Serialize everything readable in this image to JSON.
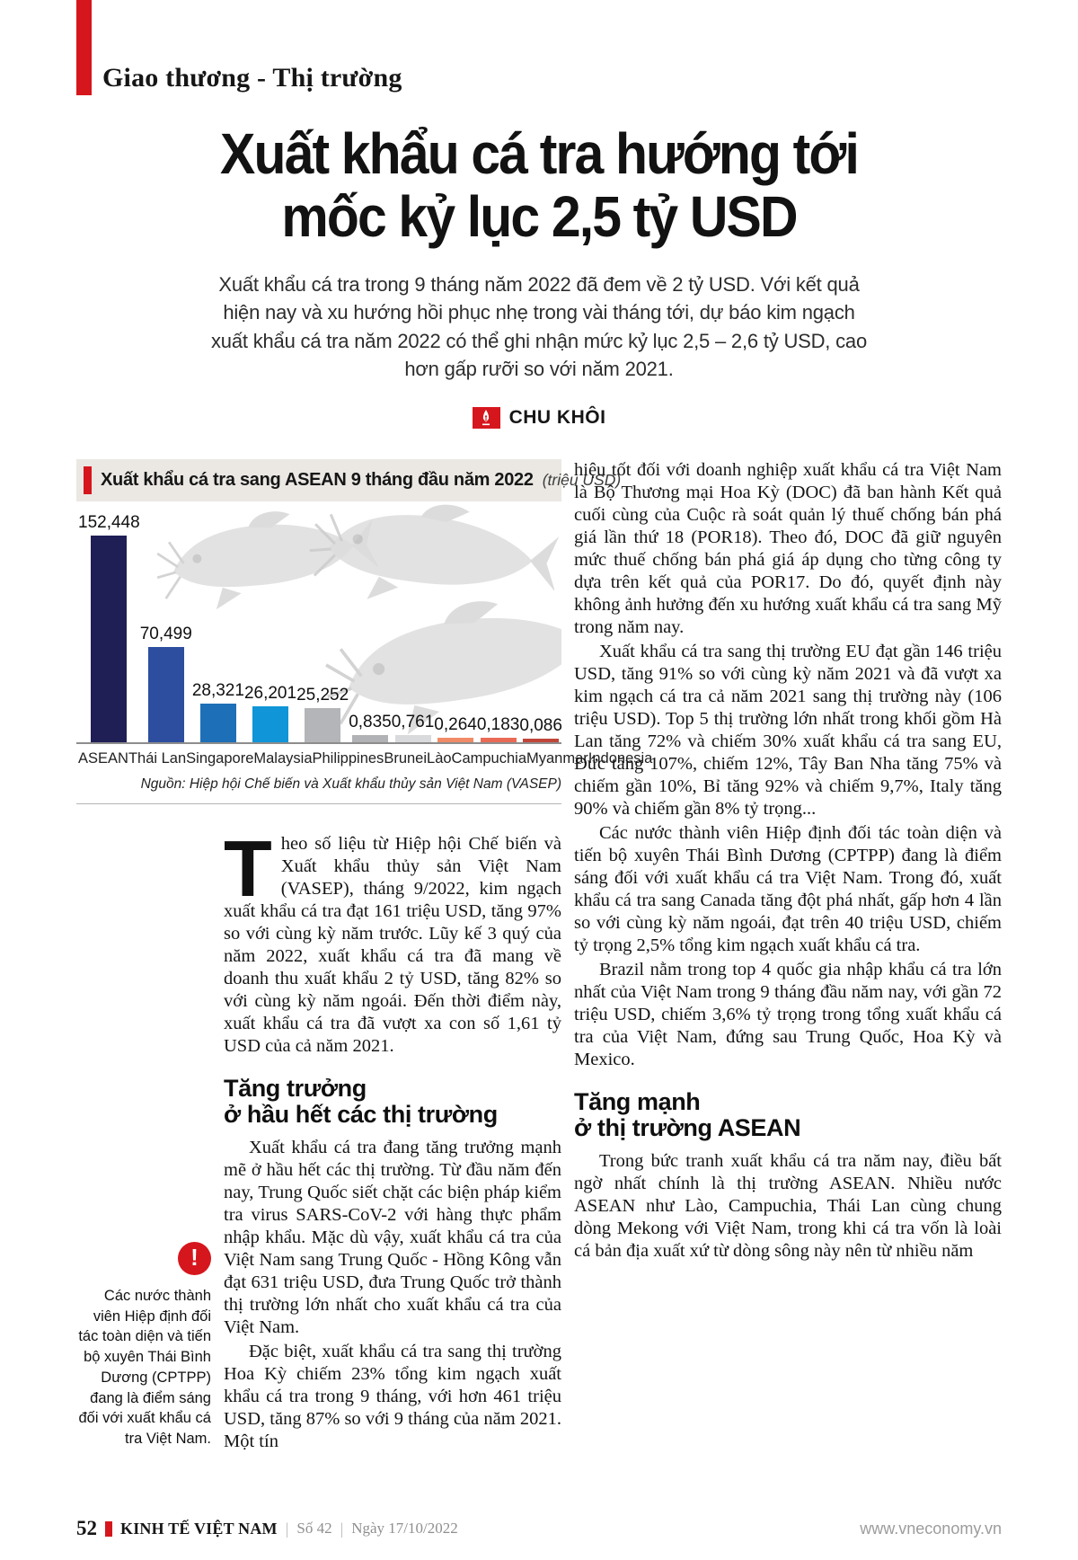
{
  "kicker": "Giao thương - Thị trường",
  "headline": {
    "line1": "Xuất khẩu cá tra hướng tới",
    "line2": "mốc kỷ lục 2,5 tỷ USD"
  },
  "deck": "Xuất khẩu cá tra trong 9 tháng năm 2022 đã đem về 2 tỷ USD. Với kết quả hiện nay và xu hướng hồi phục nhẹ trong vài tháng tới, dự báo kim ngạch xuất khẩu cá tra năm 2022 có thể ghi nhận mức kỷ lục 2,5 – 2,6 tỷ USD, cao hơn gấp rưỡi so với năm 2021.",
  "byline": {
    "author": "CHU KHÔI",
    "icon": "pen-nib-icon"
  },
  "chart_data": {
    "type": "bar",
    "title": "Xuất khẩu cá tra sang ASEAN 9 tháng đầu năm 2022",
    "unit_note": "(triệu USD)",
    "categories": [
      "ASEAN",
      "Thái Lan",
      "Singapore",
      "Malaysia",
      "Philippines",
      "Brunei",
      "Lào",
      "Campuchia",
      "Myanmar",
      "Indonesia"
    ],
    "values": [
      152.448,
      70.499,
      28.321,
      26.201,
      25.252,
      0.835,
      0.761,
      0.264,
      0.183,
      0.086
    ],
    "value_labels": [
      "152,448",
      "70,499",
      "28,321",
      "26,201",
      "25,252",
      "0,835",
      "0,761",
      "0,264",
      "0,183",
      "0,086"
    ],
    "bar_colors": [
      "#1f1e55",
      "#2d4e9e",
      "#1d70b7",
      "#0f95d8",
      "#b3b5b8",
      "#b0b2b5",
      "#d9dadc",
      "#f08a67",
      "#e96a55",
      "#c0463a"
    ],
    "ylim": [
      0,
      160
    ],
    "xlabel": "",
    "ylabel": "",
    "grid": false,
    "legend": "none",
    "source": "Nguồn: Hiệp hội Chế biến và Xuất khẩu thủy sản Việt Nam (VASEP)",
    "accent_color": "#d6161d",
    "background_illustration": "catfish"
  },
  "article": {
    "left": {
      "dropcap": "T",
      "p1": "heo số liệu từ Hiệp hội Chế biến và Xuất khẩu thủy sản Việt Nam (VASEP), tháng 9/2022, kim ngạch xuất khẩu cá tra đạt 161 triệu USD, tăng 97% so với cùng kỳ năm trước. Lũy kế 3 quý của năm 2022, xuất khẩu cá tra đã mang về doanh thu xuất khẩu 2 tỷ USD, tăng 82% so với cùng kỳ năm ngoái. Đến thời điểm này, xuất khẩu cá tra đã vượt xa con số 1,61 tỷ USD của cả năm 2021.",
      "heading1_line1": "Tăng trưởng",
      "heading1_line2": "ở hầu hết các thị trường",
      "p2": "Xuất khẩu cá tra đang tăng trưởng mạnh mẽ ở hầu hết các thị trường. Từ đầu năm đến nay, Trung Quốc siết chặt các biện pháp kiểm tra virus SARS-CoV-2 với hàng thực phẩm nhập khẩu. Mặc dù vậy, xuất khẩu cá tra của Việt Nam sang Trung Quốc - Hồng Kông vẫn đạt 631 triệu USD, đưa Trung Quốc trở thành thị trường lớn nhất cho xuất khẩu cá tra của Việt Nam.",
      "p3": "Đặc biệt, xuất khẩu cá tra sang thị trường Hoa Kỳ chiếm 23% tổng kim ngạch xuất khẩu cá tra trong 9 tháng, với hơn 461 triệu USD, tăng 87% so với 9 tháng của năm 2021. Một tín"
    },
    "right": {
      "p1": "hiệu tốt đối với doanh nghiệp xuất khẩu cá tra Việt Nam là Bộ Thương mại Hoa Kỳ (DOC) đã ban hành Kết quả cuối cùng của Cuộc rà soát quản lý thuế chống bán phá giá lần thứ 18 (POR18). Theo đó, DOC đã giữ nguyên mức thuế chống bán phá giá áp dụng cho từng công ty dựa trên kết quả của POR17. Do đó, quyết định này không ảnh hưởng đến xu hướng xuất khẩu cá tra sang Mỹ trong năm nay.",
      "p2": "Xuất khẩu cá tra sang thị trường EU đạt gần 146 triệu USD, tăng 91% so với cùng kỳ năm 2021 và đã vượt xa kim ngạch cá tra cả năm 2021 sang thị trường này (106 triệu USD). Top 5 thị trường lớn nhất trong khối gồm Hà Lan tăng 72% và chiếm 30% xuất khẩu cá tra sang EU, Đức tăng 107%, chiếm 12%, Tây Ban Nha tăng 75% và chiếm gần 10%, Bỉ tăng 92% và chiếm 9,7%, Italy tăng 90% và chiếm gần 8% tỷ trọng...",
      "p3": "Các nước thành viên Hiệp định đối tác toàn diện và tiến bộ xuyên Thái Bình Dương (CPTPP) đang là điểm sáng đối với xuất khẩu cá tra Việt Nam. Trong đó, xuất khẩu cá tra sang Canada tăng đột phá nhất, gấp hơn 4 lần so với cùng kỳ năm ngoái, đạt trên 40 triệu USD, chiếm tỷ trọng 2,5% tổng kim ngạch xuất khẩu cá tra.",
      "p4": "Brazil nằm trong top 4 quốc gia nhập khẩu cá tra lớn nhất của Việt Nam trong 9 tháng đầu năm nay, với gần 72 triệu USD, chiếm 3,6% tỷ trọng trong tổng xuất khẩu cá tra của Việt Nam, đứng sau Trung Quốc, Hoa Kỳ và Mexico.",
      "heading2_line1": "Tăng mạnh",
      "heading2_line2": "ở thị trường ASEAN",
      "p5": "Trong bức tranh xuất khẩu cá tra năm nay, điều bất ngờ nhất chính là thị trường ASEAN. Nhiều nước ASEAN như Lào, Campuchia, Thái Lan cùng chung dòng Mekong với Việt Nam, trong khi cá tra vốn là loài cá bản địa xuất xứ từ dòng sông này nên từ nhiều năm"
    }
  },
  "pullquote": {
    "icon": "alert-icon",
    "icon_glyph": "!",
    "text": "Các nước thành viên Hiệp định đối tác toàn diện và tiến bộ xuyên Thái Bình Dương (CPTPP) đang là điểm sáng đối với xuất khẩu cá tra Việt Nam."
  },
  "footer": {
    "page_number": "52",
    "brand": "KINH TẾ VIỆT NAM",
    "separator": "|",
    "issue": "Số 42",
    "date": "Ngày 17/10/2022",
    "website": "www.vneconomy.vn"
  }
}
